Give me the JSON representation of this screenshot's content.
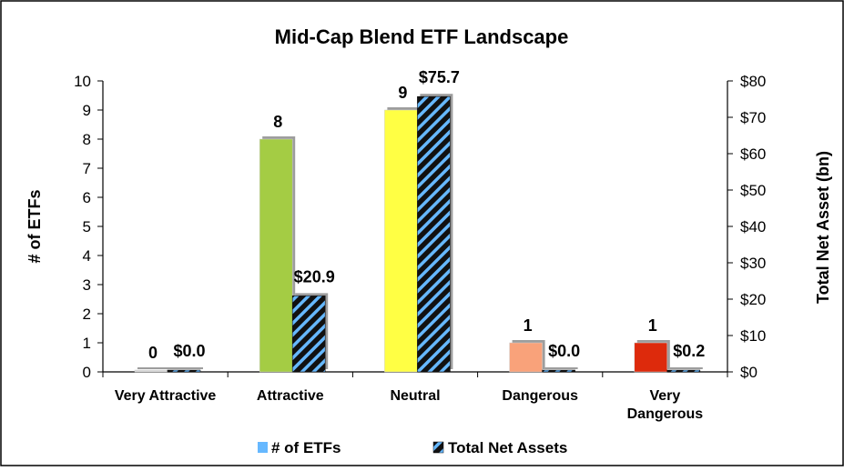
{
  "chart_data": {
    "type": "bar",
    "title": "Mid-Cap Blend ETF Landscape",
    "categories": [
      [
        "Very Attractive"
      ],
      [
        "Attractive"
      ],
      [
        "Neutral"
      ],
      [
        "Dangerous"
      ],
      [
        "Very",
        "Dangerous"
      ]
    ],
    "y_left": {
      "label": "# of ETFs",
      "min": 0,
      "max": 10,
      "step": 1,
      "ticks": [
        "0",
        "1",
        "2",
        "3",
        "4",
        "5",
        "6",
        "7",
        "8",
        "9",
        "10"
      ]
    },
    "y_right": {
      "label": "Total Net Asset (bn)",
      "min": 0,
      "max": 80,
      "step": 10,
      "ticks": [
        "$0",
        "$10",
        "$20",
        "$30",
        "$40",
        "$50",
        "$60",
        "$70",
        "$80"
      ]
    },
    "series": [
      {
        "name": "# of ETFs",
        "axis": "left",
        "values": [
          0,
          8,
          9,
          1,
          1
        ],
        "data_labels": [
          "0",
          "8",
          "9",
          "1",
          "1"
        ],
        "bar_colors": [
          "#d9d9d9",
          "#a4cc44",
          "#ffff44",
          "#f9a27a",
          "#dd2a0c"
        ],
        "legend_color": "#66b8ff"
      },
      {
        "name": "Total Net Assets",
        "axis": "right",
        "values": [
          0.0,
          20.9,
          75.7,
          0.0,
          0.2
        ],
        "data_labels": [
          "$0.0",
          "$20.9",
          "$75.7",
          "$0.0",
          "$0.2"
        ],
        "pattern_colors": [
          "#111111",
          "#66b8ff"
        ]
      }
    ],
    "legend_position": "bottom",
    "grid": false
  }
}
